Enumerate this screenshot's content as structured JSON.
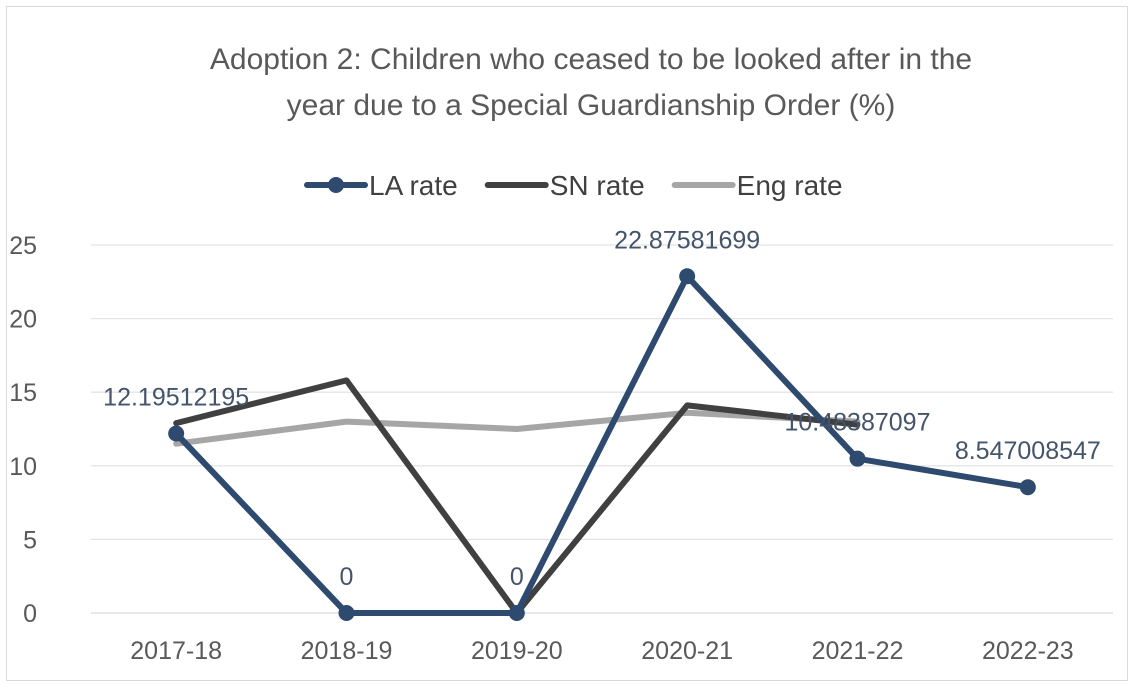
{
  "chart_data": {
    "type": "line",
    "title_lines": [
      "Adoption 2: Children who ceased to be looked after in the",
      "year due to a Special Guardianship Order (%)"
    ],
    "categories": [
      "2017-18",
      "2018-19",
      "2019-20",
      "2020-21",
      "2021-22",
      "2022-23"
    ],
    "ylim": [
      0,
      25
    ],
    "yticks": [
      0,
      5,
      10,
      15,
      20,
      25
    ],
    "grid": true,
    "legend_position": "top",
    "series": [
      {
        "name": "LA rate",
        "color": "#2e4a6e",
        "markers": true,
        "values": [
          12.19512195,
          0,
          0,
          22.87581699,
          10.48387097,
          8.547008547
        ],
        "data_labels": [
          "12.19512195",
          "0",
          "0",
          "22.87581699",
          "10.48387097",
          "8.547008547"
        ]
      },
      {
        "name": "SN rate",
        "color": "#404040",
        "markers": false,
        "values": [
          12.9,
          15.8,
          0,
          14.1,
          12.8,
          null
        ]
      },
      {
        "name": "Eng rate",
        "color": "#a6a6a6",
        "markers": false,
        "values": [
          11.5,
          13.0,
          12.5,
          13.6,
          13.0,
          null
        ]
      }
    ]
  }
}
